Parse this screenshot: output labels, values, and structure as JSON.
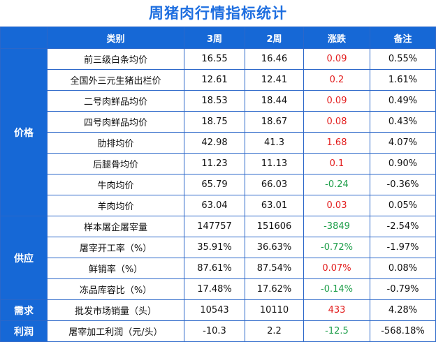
{
  "title": "周猪肉行情指标统计",
  "headers": {
    "category": "类别",
    "w3": "3周",
    "w2": "2周",
    "change": "涨跌",
    "note": "备注"
  },
  "groups": [
    {
      "name": "价格",
      "rows": [
        {
          "item": "前三级白条均价",
          "w3": "16.55",
          "w2": "16.46",
          "change": "0.09",
          "dir": "up",
          "note": "0.55%"
        },
        {
          "item": "全国外三元生猪出栏价",
          "w3": "12.61",
          "w2": "12.41",
          "change": "0.2",
          "dir": "up",
          "note": "1.61%"
        },
        {
          "item": "二号肉鲜品均价",
          "w3": "18.53",
          "w2": "18.44",
          "change": "0.09",
          "dir": "up",
          "note": "0.49%"
        },
        {
          "item": "四号肉鲜品均价",
          "w3": "18.75",
          "w2": "18.67",
          "change": "0.08",
          "dir": "up",
          "note": "0.43%"
        },
        {
          "item": "肋排均价",
          "w3": "42.98",
          "w2": "41.3",
          "change": "1.68",
          "dir": "up",
          "note": "4.07%"
        },
        {
          "item": "后腿骨均价",
          "w3": "11.23",
          "w2": "11.13",
          "change": "0.1",
          "dir": "up",
          "note": "0.90%"
        },
        {
          "item": "牛肉均价",
          "w3": "65.79",
          "w2": "66.03",
          "change": "-0.24",
          "dir": "down",
          "note": "-0.36%"
        },
        {
          "item": "羊肉均价",
          "w3": "63.04",
          "w2": "63.01",
          "change": "0.03",
          "dir": "up",
          "note": "0.05%"
        }
      ]
    },
    {
      "name": "供应",
      "rows": [
        {
          "item": "样本屠企屠宰量",
          "w3": "147757",
          "w2": "151606",
          "change": "-3849",
          "dir": "down",
          "note": "-2.54%"
        },
        {
          "item": "屠宰开工率（%）",
          "w3": "35.91%",
          "w2": "36.63%",
          "change": "-0.72%",
          "dir": "down",
          "note": "-1.97%"
        },
        {
          "item": "鲜销率（%）",
          "w3": "87.61%",
          "w2": "87.54%",
          "change": "0.07%",
          "dir": "up",
          "note": "0.08%"
        },
        {
          "item": "冻品库容比（%）",
          "w3": "17.48%",
          "w2": "17.62%",
          "change": "-0.14%",
          "dir": "down",
          "note": "-0.79%"
        }
      ]
    },
    {
      "name": "需求",
      "rows": [
        {
          "item": "批发市场销量（头）",
          "w3": "10543",
          "w2": "10110",
          "change": "433",
          "dir": "up",
          "note": "4.28%"
        }
      ]
    },
    {
      "name": "利润",
      "rows": [
        {
          "item": "屠宰加工利润（元/头）",
          "w3": "-10.3",
          "w2": "2.2",
          "change": "-12.5",
          "dir": "down",
          "note": "-568.18%"
        }
      ]
    }
  ],
  "colors": {
    "header_bg": "#1668d6",
    "title": "#1f6fe0",
    "up": "#e21c1c",
    "down": "#1e9e4a"
  }
}
